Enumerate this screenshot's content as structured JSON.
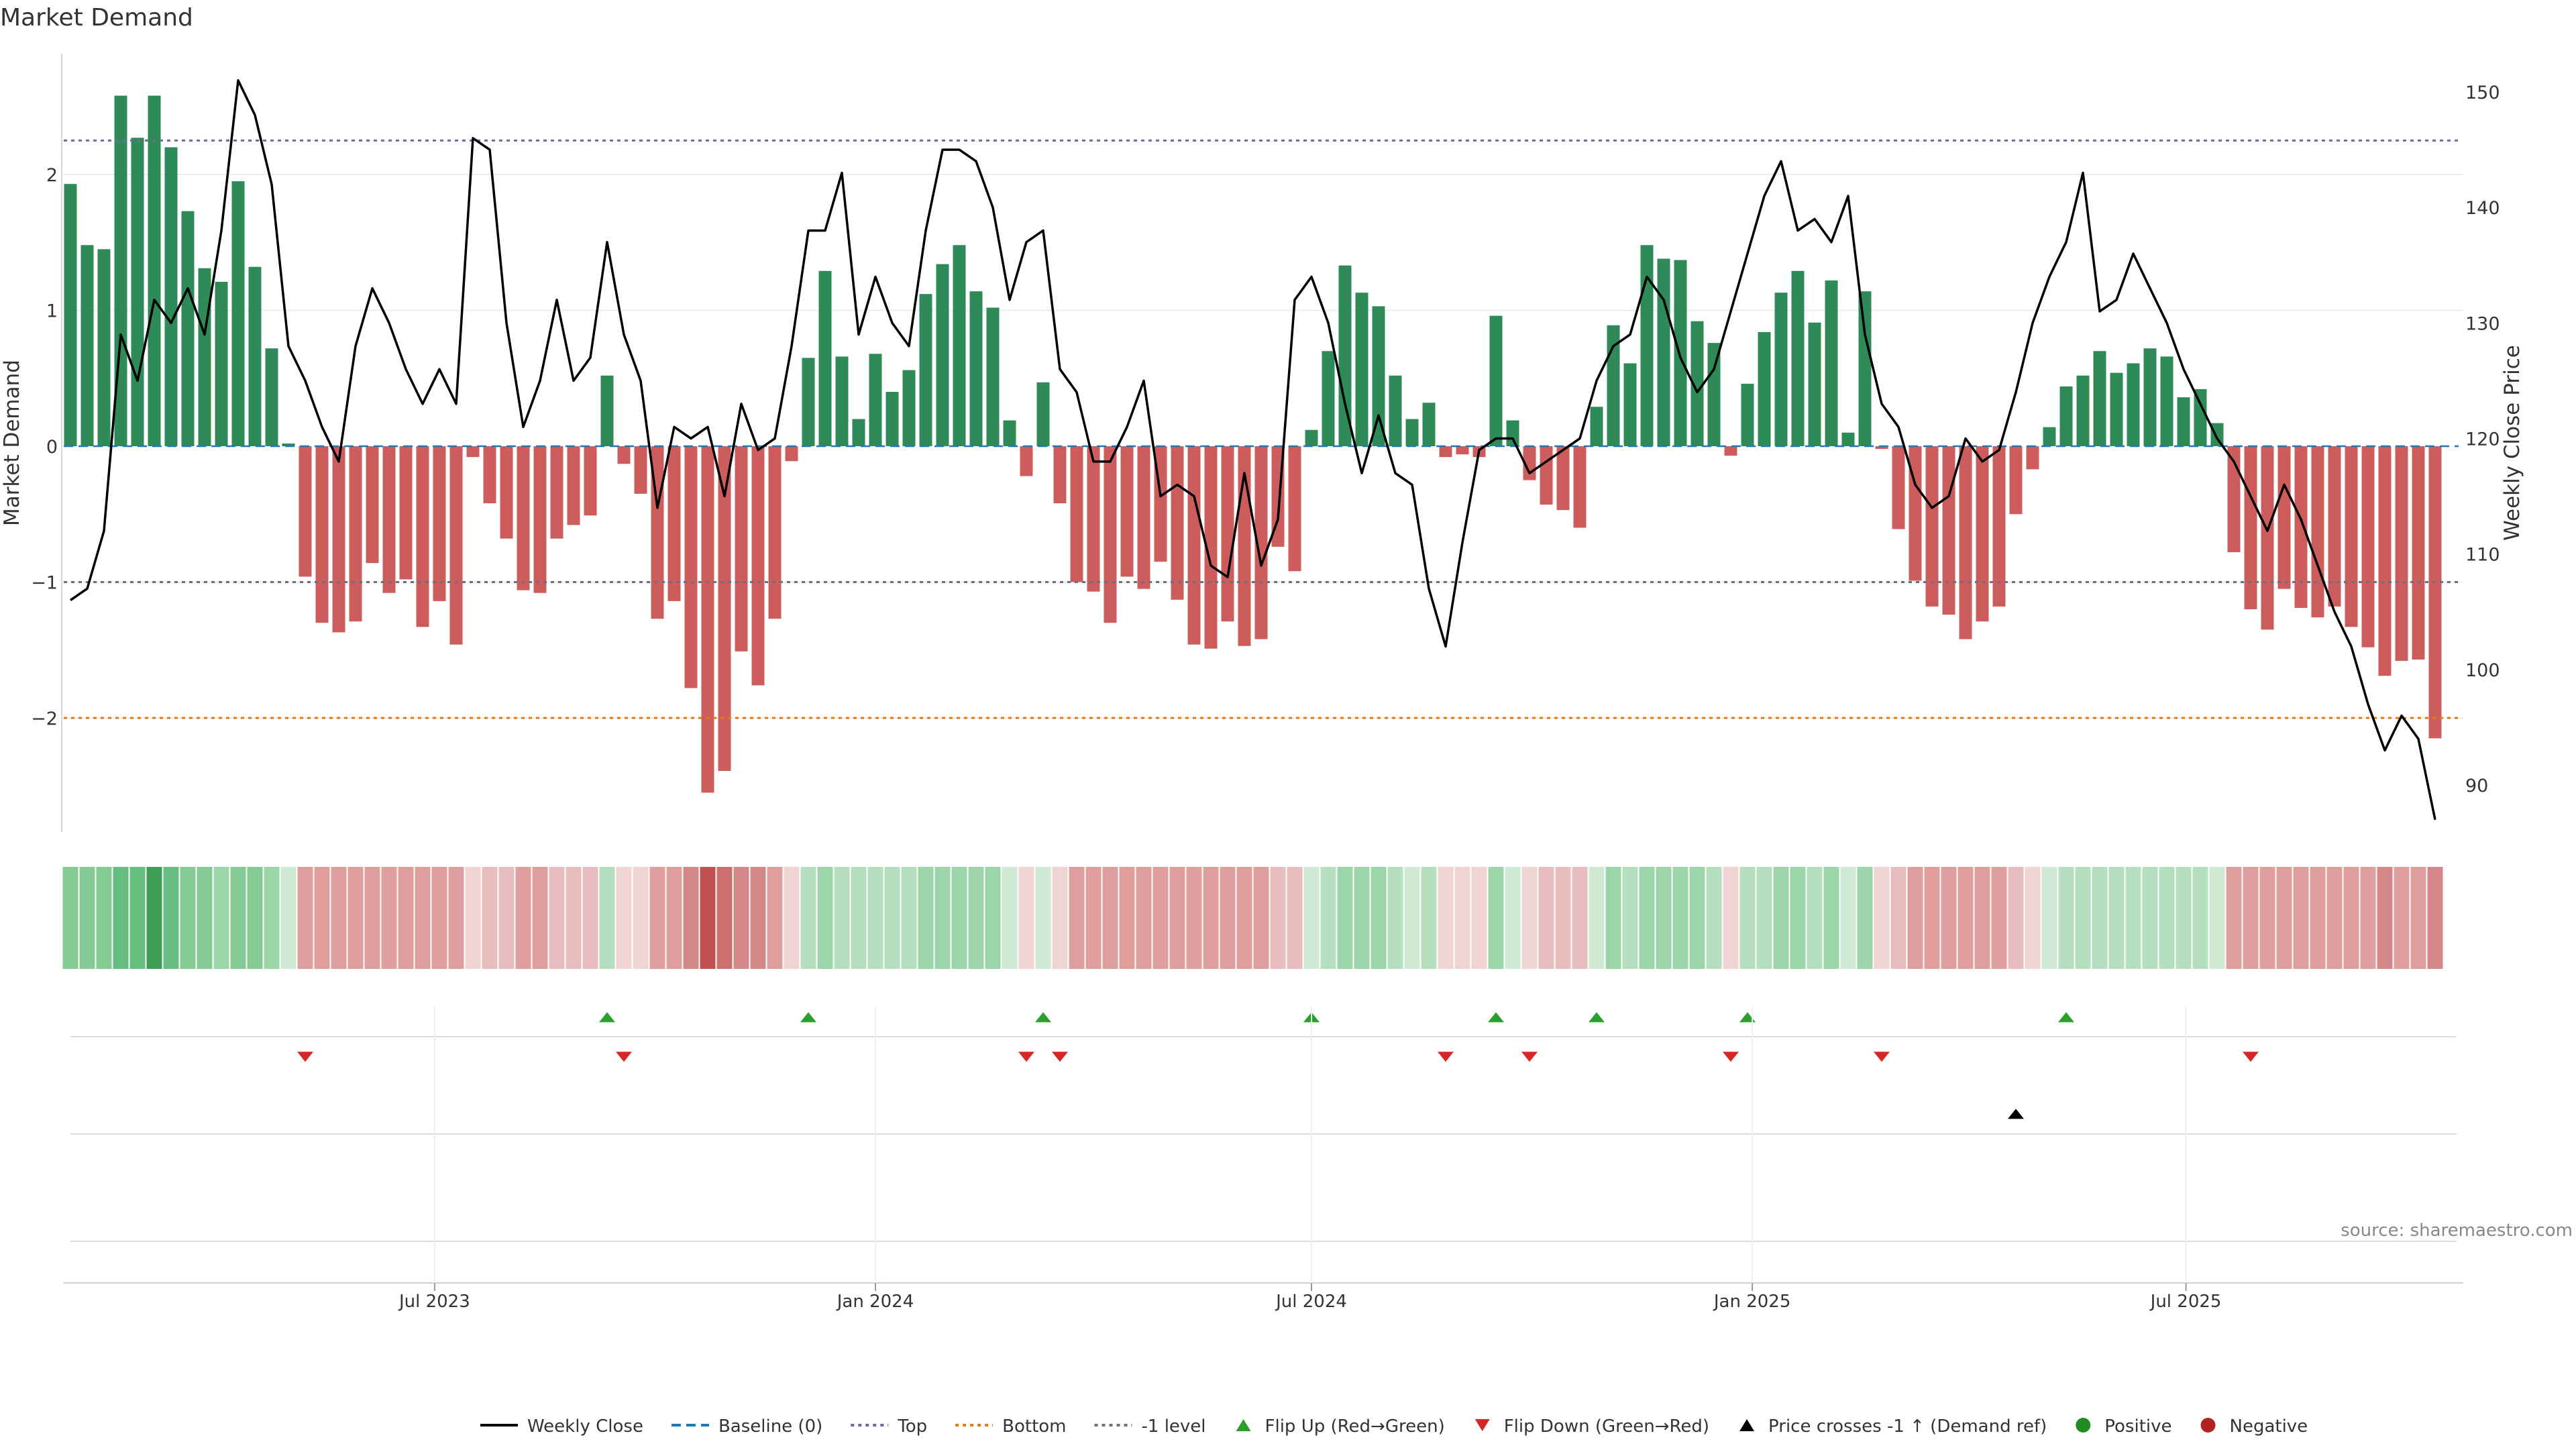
{
  "chart_data": {
    "type": "bar",
    "title": "Market Demand",
    "ylabel": "Market Demand",
    "ylabel_right": "Weekly Close Price",
    "ylim": [
      -2.85,
      2.85
    ],
    "ylim_right": [
      86,
      152
    ],
    "yticks": [
      2,
      1,
      0,
      -1,
      -2
    ],
    "yticks_right": [
      150,
      140,
      130,
      120,
      110,
      100,
      90
    ],
    "ytick_labels": [
      "2",
      "1",
      "0",
      "−1",
      "−2"
    ],
    "reference_lines": {
      "top": 2.25,
      "bottom": -2.0,
      "minus_one": -1.0,
      "baseline": 0
    },
    "x": {
      "start_date": "2023-01-30",
      "date_ticks": [
        "Jul 2023",
        "Jan 2024",
        "Jul 2024",
        "Jan 2025",
        "Jul 2025"
      ]
    },
    "demand": [
      1.93,
      1.48,
      1.45,
      2.58,
      2.27,
      2.58,
      2.2,
      1.73,
      1.31,
      1.21,
      1.95,
      1.32,
      0.72,
      0.02,
      -0.96,
      -1.3,
      -1.37,
      -1.29,
      -0.86,
      -1.08,
      -0.98,
      -1.33,
      -1.14,
      -1.46,
      -0.08,
      -0.42,
      -0.68,
      -1.06,
      -1.08,
      -0.68,
      -0.58,
      -0.51,
      0.52,
      -0.13,
      -0.35,
      -1.27,
      -1.14,
      -1.78,
      -2.55,
      -2.39,
      -1.51,
      -1.76,
      -1.27,
      -0.11,
      0.65,
      1.29,
      0.66,
      0.2,
      0.68,
      0.4,
      0.56,
      1.12,
      1.34,
      1.48,
      1.14,
      1.02,
      0.19,
      -0.22,
      0.47,
      -0.42,
      -1.0,
      -1.07,
      -1.3,
      -0.96,
      -1.05,
      -0.85,
      -1.13,
      -1.46,
      -1.49,
      -1.29,
      -1.47,
      -1.42,
      -0.74,
      -0.92,
      0.12,
      0.7,
      1.33,
      1.13,
      1.03,
      0.52,
      0.2,
      0.32,
      -0.08,
      -0.06,
      -0.08,
      0.96,
      0.19,
      -0.25,
      -0.43,
      -0.47,
      -0.6,
      0.29,
      0.89,
      0.61,
      1.48,
      1.38,
      1.37,
      0.92,
      0.76,
      -0.07,
      0.46,
      0.84,
      1.13,
      1.29,
      0.91,
      1.22,
      0.1,
      1.14,
      -0.02,
      -0.61,
      -0.99,
      -1.18,
      -1.24,
      -1.42,
      -1.29,
      -1.18,
      -0.5,
      -0.17,
      0.14,
      0.44,
      0.52,
      0.7,
      0.54,
      0.61,
      0.72,
      0.66,
      0.36,
      0.42,
      0.17,
      -0.78,
      -1.2,
      -1.35,
      -1.05,
      -1.19,
      -1.26,
      -1.18,
      -1.33,
      -1.48,
      -1.69,
      -1.58,
      -1.57,
      -2.15
    ],
    "close": [
      106,
      107,
      112,
      129,
      125,
      132,
      130,
      133,
      129,
      138,
      151,
      148,
      142,
      128,
      125,
      121,
      118,
      128,
      133,
      130,
      126,
      123,
      126,
      123,
      146,
      145,
      130,
      121,
      125,
      132,
      125,
      127,
      137,
      129,
      125,
      114,
      121,
      120,
      121,
      115,
      123,
      119,
      120,
      128,
      138,
      138,
      143,
      129,
      134,
      130,
      128,
      138,
      145,
      145,
      144,
      140,
      132,
      137,
      138,
      126,
      124,
      118,
      118,
      121,
      125,
      115,
      116,
      115,
      109,
      108,
      117,
      109,
      113,
      132,
      134,
      130,
      123,
      117,
      122,
      117,
      116,
      107,
      102,
      111,
      119,
      120,
      120,
      117,
      118,
      119,
      120,
      125,
      128,
      129,
      134,
      132,
      127,
      124,
      126,
      131,
      136,
      141,
      144,
      138,
      139,
      137,
      141,
      129,
      123,
      121,
      116,
      114,
      115,
      120,
      118,
      119,
      124,
      130,
      134,
      137,
      143,
      131,
      132,
      136,
      133,
      130,
      126,
      123,
      120,
      118,
      115,
      112,
      116,
      113,
      109,
      105,
      102,
      97,
      93,
      96,
      94,
      87
    ],
    "heat_bands": [
      4,
      4,
      4,
      5,
      5,
      6,
      5,
      4,
      4,
      3,
      4,
      4,
      3,
      1,
      -3,
      -3,
      -3,
      -3,
      -3,
      -3,
      -3,
      -3,
      -3,
      -3,
      -1,
      -2,
      -2,
      -3,
      -3,
      -2,
      -2,
      -2,
      2,
      -1,
      -1,
      -3,
      -3,
      -4,
      -6,
      -5,
      -4,
      -4,
      -3,
      -1,
      2,
      3,
      2,
      2,
      2,
      2,
      2,
      3,
      3,
      3,
      3,
      3,
      1,
      -1,
      1,
      -1,
      -3,
      -3,
      -3,
      -3,
      -3,
      -3,
      -3,
      -3,
      -3,
      -3,
      -3,
      -3,
      -2,
      -2,
      1,
      2,
      3,
      3,
      3,
      2,
      1,
      2,
      -1,
      -1,
      -1,
      3,
      1,
      -1,
      -2,
      -2,
      -2,
      1,
      3,
      2,
      3,
      3,
      3,
      3,
      2,
      -1,
      2,
      2,
      3,
      3,
      2,
      3,
      1,
      3,
      -1,
      -2,
      -3,
      -3,
      -3,
      -3,
      -3,
      -3,
      -2,
      -1,
      1,
      2,
      2,
      2,
      2,
      2,
      2,
      2,
      2,
      2,
      1,
      -3,
      -3,
      -3,
      -3,
      -3,
      -3,
      -3,
      -3,
      -3,
      -4,
      -3,
      -3,
      -4
    ],
    "flip_up_weeks": [
      32,
      44,
      58,
      74,
      85,
      91,
      100,
      119
    ],
    "flip_down_weeks": [
      14,
      33,
      57,
      59,
      82,
      87,
      99,
      108,
      130
    ],
    "price_cross_weeks": [
      116
    ],
    "colors": {
      "positive_bar": "#2e8b57",
      "negative_bar": "#cd5c5c",
      "price_line": "#000000",
      "top_line": "#6a6aa0",
      "bottom_line": "#e07b1a",
      "minus_one_line": "#6e6e80",
      "baseline": "#1f77b4",
      "flip_up": "#2ca02c",
      "flip_down": "#d62728",
      "price_cross": "#000000",
      "positive_dot": "#228b22",
      "negative_dot": "#b22222"
    },
    "source": "source: sharemaestro.com",
    "legend": [
      {
        "label": "Weekly Close",
        "icon": "line-solid"
      },
      {
        "label": "Baseline (0)",
        "icon": "line-dashed"
      },
      {
        "label": "Top",
        "icon": "line-dotted-purple"
      },
      {
        "label": "Bottom",
        "icon": "line-dotted-orange"
      },
      {
        "label": "-1 level",
        "icon": "line-dotted-gray"
      },
      {
        "label": "Flip Up (Red→Green)",
        "icon": "triangle-up-green"
      },
      {
        "label": "Flip Down (Green→Red)",
        "icon": "triangle-down-red"
      },
      {
        "label": "Price crosses -1 ↑ (Demand ref)",
        "icon": "triangle-up-black"
      },
      {
        "label": "Positive",
        "icon": "dot-green"
      },
      {
        "label": "Negative",
        "icon": "dot-red"
      }
    ]
  }
}
